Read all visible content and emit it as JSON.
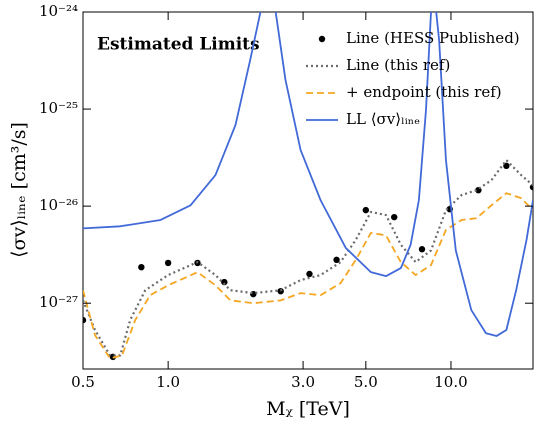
{
  "chart_data": {
    "type": "line",
    "annotation": "Estimated Limits",
    "xlabel": "Mᵪ [TeV]",
    "ylabel": "⟨σv⟩ₗᵢₙₑ [cm³/s]",
    "xscale": "log",
    "yscale": "log",
    "xlim": [
      0.5,
      19.5
    ],
    "ylim": [
      2.1e-28,
      1e-24
    ],
    "xticks": [
      0.5,
      {
        "value": 1,
        "label": "1.0"
      },
      {
        "value": 3,
        "label": "3.0"
      },
      {
        "value": 5,
        "label": "5.0"
      },
      {
        "value": 10,
        "label": "10.0"
      }
    ],
    "yticks": [
      {
        "value": 1e-27,
        "label": "10⁻²⁷"
      },
      {
        "value": 1e-26,
        "label": "10⁻²⁶"
      },
      {
        "value": 1e-25,
        "label": "10⁻²⁵"
      },
      {
        "value": 1e-24,
        "label": "10⁻²⁴"
      }
    ],
    "legend": "upper right",
    "series": [
      {
        "name": "Line (HESS Published)",
        "color": "#000000",
        "style": "dots",
        "x": [
          0.5,
          0.638,
          0.804,
          1.0,
          1.27,
          1.58,
          2.0,
          2.5,
          3.16,
          3.94,
          5.0,
          6.3,
          7.9,
          9.9,
          12.5,
          15.7,
          19.5
        ],
        "values": [
          6.7e-28,
          2.8e-28,
          2.35e-27,
          2.6e-27,
          2.6e-27,
          1.65e-27,
          1.24e-27,
          1.33e-27,
          2e-27,
          2.8e-27,
          9.1e-27,
          7.7e-27,
          3.6e-27,
          9.3e-27,
          1.46e-26,
          2.6e-26,
          1.57e-26
        ]
      },
      {
        "name": "Line (this ref)",
        "color": "#6b6b6b",
        "style": "dotted",
        "x": [
          0.5,
          0.551,
          0.623,
          0.677,
          0.734,
          0.83,
          1.0,
          1.27,
          1.47,
          1.66,
          2.0,
          2.5,
          2.94,
          3.46,
          4.07,
          4.61,
          5.21,
          5.89,
          6.65,
          7.5,
          8.5,
          9.6,
          10.9,
          12.3,
          13.9,
          15.7,
          17.7,
          19.5
        ],
        "values": [
          1.07e-27,
          5.3e-28,
          2.9e-28,
          2.9e-28,
          6.7e-28,
          1.36e-27,
          1.95e-27,
          2.65e-27,
          1.95e-27,
          1.36e-27,
          1.27e-27,
          1.36e-27,
          1.73e-27,
          1.95e-27,
          2.65e-27,
          4.5e-27,
          8.7e-27,
          8.1e-27,
          4e-27,
          2.65e-27,
          3.5e-27,
          9.1e-27,
          1.3e-26,
          1.46e-26,
          1.85e-26,
          2.98e-26,
          2.09e-26,
          1.64e-26
        ]
      },
      {
        "name": "+ endpoint (this ref)",
        "color": "#f5a623",
        "style": "dashed",
        "x": [
          0.5,
          0.551,
          0.623,
          0.687,
          0.765,
          0.864,
          1.0,
          1.27,
          1.47,
          1.66,
          2.0,
          2.5,
          2.94,
          3.46,
          4.07,
          4.61,
          5.21,
          5.89,
          6.65,
          7.5,
          8.5,
          9.6,
          10.9,
          12.3,
          13.9,
          15.7,
          17.7,
          19.5
        ],
        "values": [
          1.36e-27,
          4.7e-28,
          2.7e-28,
          2.9e-28,
          6.7e-28,
          1.21e-27,
          1.53e-27,
          2.09e-27,
          1.53e-27,
          1.07e-27,
          1e-27,
          1.07e-27,
          1.27e-27,
          1.21e-27,
          1.61e-27,
          2.8e-27,
          5.3e-27,
          5e-27,
          2.65e-27,
          1.95e-27,
          2.47e-27,
          5.7e-27,
          7.2e-27,
          7.5e-27,
          1.02e-26,
          1.36e-26,
          1.21e-26,
          9.1e-27
        ]
      },
      {
        "name": "LL ⟨σv⟩ₗᵢₙₑ",
        "color": "#4169d8",
        "style": "solid",
        "x": [
          0.5,
          0.677,
          0.94,
          1.2,
          1.47,
          1.73,
          1.95,
          2.12,
          2.26,
          2.4,
          2.6,
          2.94,
          3.46,
          4.25,
          5.21,
          5.89,
          6.65,
          7.2,
          7.7,
          8.16,
          8.5,
          8.65,
          9.08,
          9.6,
          10.4,
          11.8,
          13.3,
          14.5,
          15.7,
          17.0,
          18.5,
          19.5
        ],
        "values": [
          5.9e-27,
          6.2e-27,
          7.2e-27,
          1.02e-26,
          2.09e-26,
          6.84e-26,
          3.2e-25,
          1e-24,
          2e-24,
          1e-24,
          1.99e-25,
          3.78e-26,
          1.15e-26,
          3.7e-27,
          2.09e-27,
          1.9e-27,
          2.3e-27,
          4e-27,
          1.15e-26,
          9.8e-26,
          1e-24,
          2e-24,
          5.14e-25,
          2.98e-26,
          3.5e-27,
          8.5e-28,
          4.9e-28,
          4.6e-28,
          5.3e-28,
          1.36e-27,
          4.5e-27,
          1.15e-26
        ]
      }
    ]
  }
}
